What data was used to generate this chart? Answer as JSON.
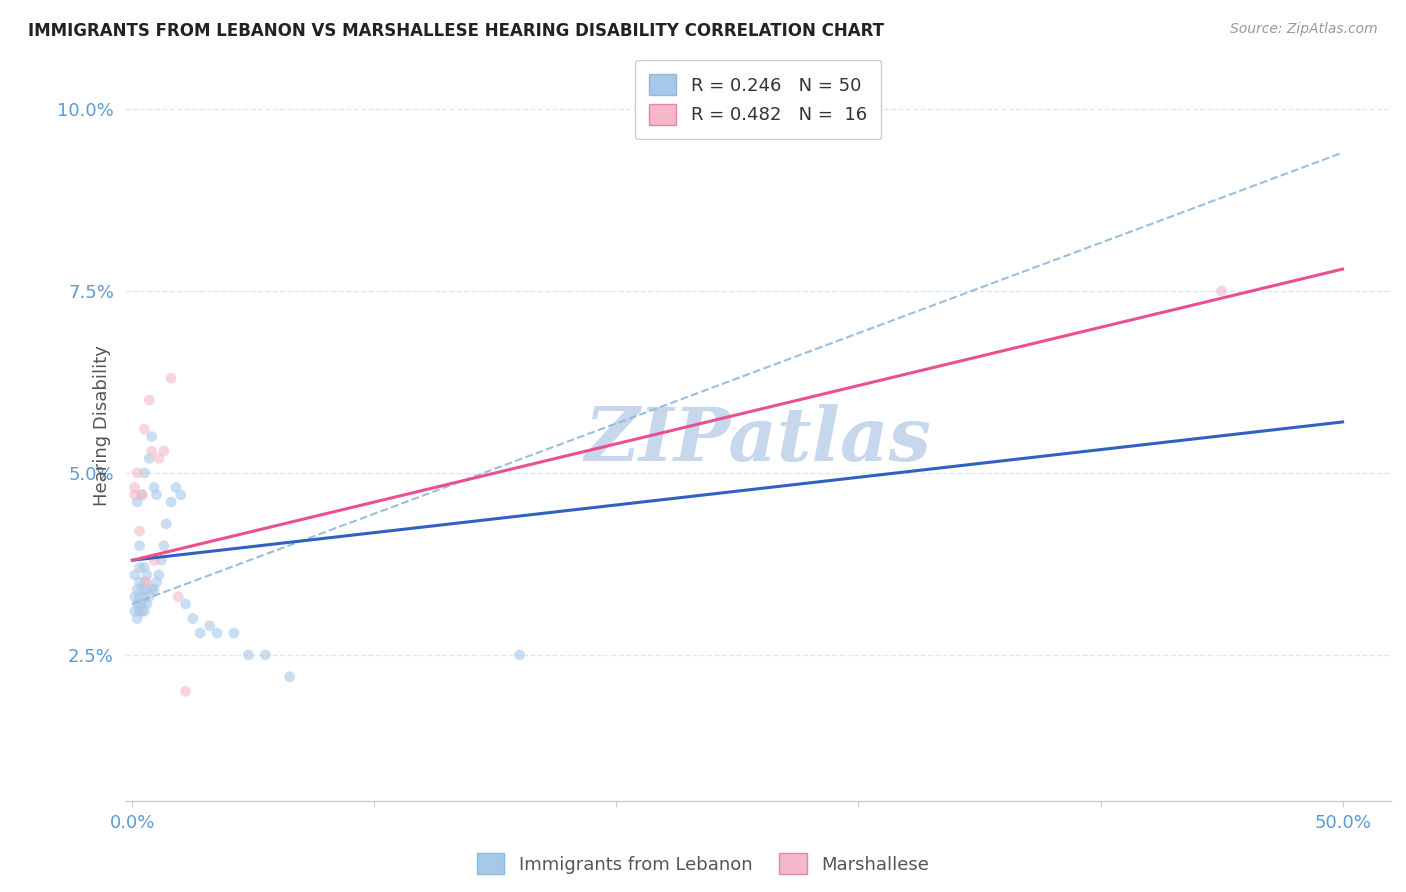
{
  "title": "IMMIGRANTS FROM LEBANON VS MARSHALLESE HEARING DISABILITY CORRELATION CHART",
  "source": "Source: ZipAtlas.com",
  "ylabel": "Hearing Disability",
  "y_ticks": [
    0.025,
    0.05,
    0.075,
    0.1
  ],
  "y_tick_labels": [
    "2.5%",
    "5.0%",
    "7.5%",
    "10.0%"
  ],
  "xlim": [
    -0.003,
    0.52
  ],
  "ylim": [
    0.005,
    0.108
  ],
  "blue_color": "#a8c8e8",
  "pink_color": "#f4b8c8",
  "trend_blue": "#3060c0",
  "trend_pink": "#e85090",
  "trend_dashed_color": "#90b8d8",
  "watermark": "ZIPatlas",
  "legend_label1": "Immigrants from Lebanon",
  "legend_label2": "Marshallese",
  "background_color": "#ffffff",
  "grid_color": "#dde8f0",
  "title_color": "#222222",
  "axis_label_color": "#5b9bd5",
  "watermark_color": "#c8d8ec",
  "marker_size": 60,
  "marker_alpha": 0.6,
  "blue_x": [
    0.001,
    0.001,
    0.001,
    0.002,
    0.002,
    0.002,
    0.002,
    0.003,
    0.003,
    0.003,
    0.003,
    0.003,
    0.003,
    0.004,
    0.004,
    0.004,
    0.004,
    0.005,
    0.005,
    0.005,
    0.005,
    0.005,
    0.006,
    0.006,
    0.006,
    0.007,
    0.007,
    0.008,
    0.008,
    0.009,
    0.009,
    0.01,
    0.01,
    0.011,
    0.012,
    0.013,
    0.014,
    0.016,
    0.018,
    0.02,
    0.022,
    0.025,
    0.028,
    0.032,
    0.035,
    0.042,
    0.048,
    0.055,
    0.065,
    0.16
  ],
  "blue_y": [
    0.031,
    0.033,
    0.036,
    0.03,
    0.032,
    0.034,
    0.046,
    0.031,
    0.032,
    0.033,
    0.035,
    0.037,
    0.04,
    0.031,
    0.032,
    0.034,
    0.047,
    0.031,
    0.033,
    0.035,
    0.037,
    0.05,
    0.032,
    0.034,
    0.036,
    0.033,
    0.052,
    0.034,
    0.055,
    0.034,
    0.048,
    0.035,
    0.047,
    0.036,
    0.038,
    0.04,
    0.043,
    0.046,
    0.048,
    0.047,
    0.032,
    0.03,
    0.028,
    0.029,
    0.028,
    0.028,
    0.025,
    0.025,
    0.022,
    0.025
  ],
  "pink_x": [
    0.001,
    0.001,
    0.002,
    0.003,
    0.004,
    0.005,
    0.006,
    0.007,
    0.008,
    0.009,
    0.011,
    0.013,
    0.016,
    0.019,
    0.022,
    0.45
  ],
  "pink_y": [
    0.047,
    0.048,
    0.05,
    0.042,
    0.047,
    0.056,
    0.035,
    0.06,
    0.053,
    0.038,
    0.052,
    0.053,
    0.063,
    0.033,
    0.02,
    0.075
  ],
  "trend_blue_x0": 0.0,
  "trend_blue_x1": 0.5,
  "trend_blue_y0": 0.038,
  "trend_blue_y1": 0.057,
  "trend_pink_x0": 0.0,
  "trend_pink_x1": 0.5,
  "trend_pink_y0": 0.038,
  "trend_pink_y1": 0.078,
  "trend_dash_x0": 0.0,
  "trend_dash_x1": 0.5,
  "trend_dash_y0": 0.032,
  "trend_dash_y1": 0.094
}
